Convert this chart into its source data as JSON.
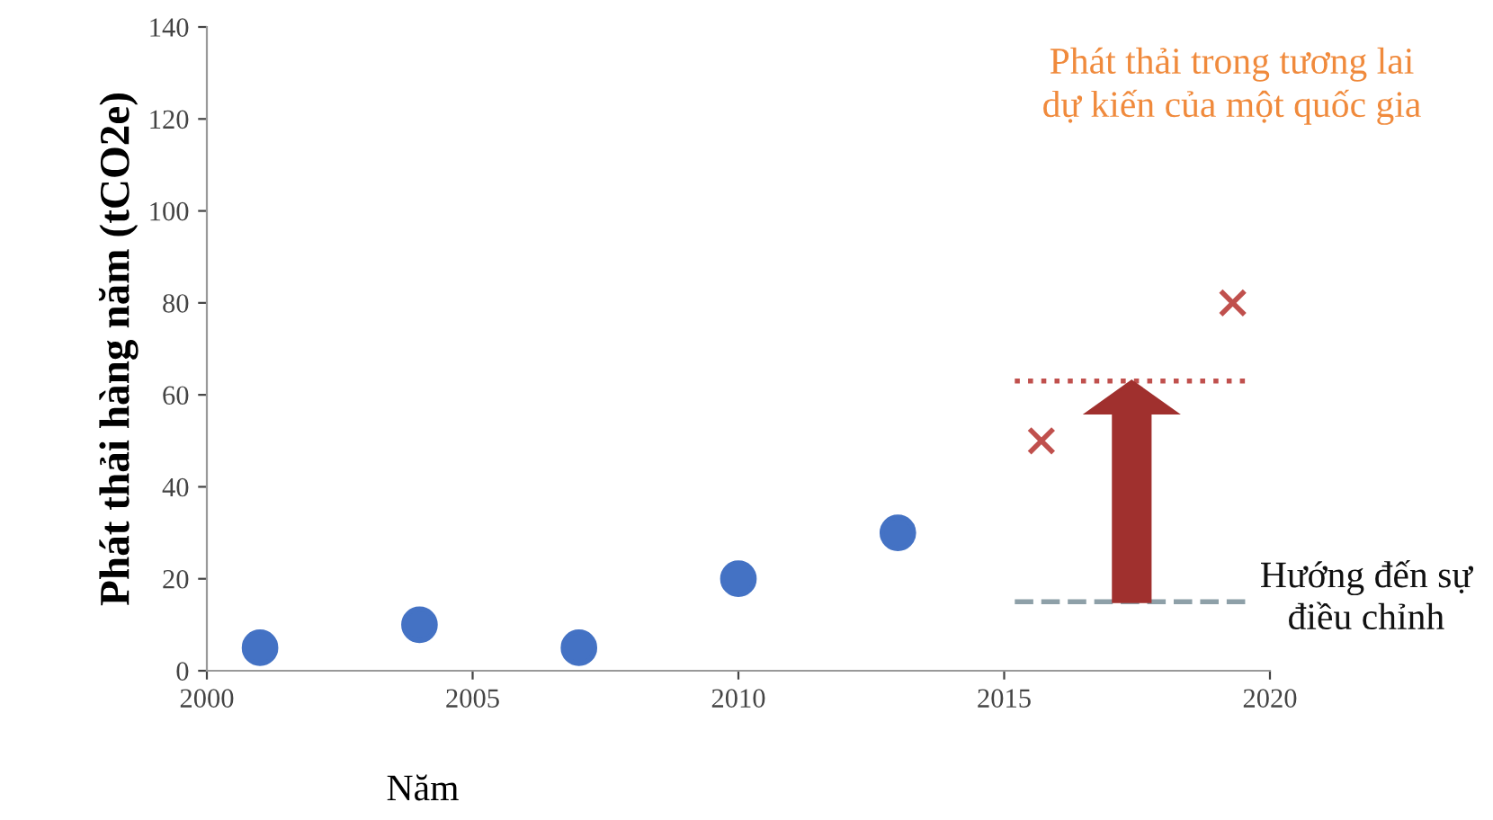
{
  "chart_data": {
    "type": "scatter",
    "xlabel": "Năm",
    "ylabel": "Phát thải hàng năm (tCO2e)",
    "xlim": [
      2000,
      2020
    ],
    "xticks": [
      2000,
      2005,
      2010,
      2015,
      2020
    ],
    "ylim": [
      0,
      140
    ],
    "yticks": [
      0,
      20,
      40,
      60,
      80,
      100,
      120,
      140
    ],
    "grid": false,
    "legend": false,
    "series": [
      {
        "color": "#4472c4",
        "marker": "circle",
        "x": [
          2001,
          2004,
          2007,
          2010,
          2013
        ],
        "values": [
          5,
          10,
          5,
          20,
          30
        ]
      },
      {
        "color": "#c0504d",
        "marker": "cross",
        "x": [
          2015.7,
          2019.3
        ],
        "values": [
          50,
          80
        ]
      },
      {
        "type": "line",
        "color": "#c0504d",
        "marker": "none",
        "line_style": "dotted",
        "x": [
          2015.2,
          2019.6
        ],
        "values": [
          63,
          63
        ]
      },
      {
        "type": "line",
        "color": "#8ea0a8",
        "marker": "none",
        "line_style": "dashed",
        "x": [
          2015.2,
          2019.6
        ],
        "values": [
          15,
          15
        ]
      }
    ],
    "annotations": [
      "Phát thải trong tương lai dự kiến của một quốc gia",
      "Hướng đến sự điều chỉnh"
    ]
  }
}
